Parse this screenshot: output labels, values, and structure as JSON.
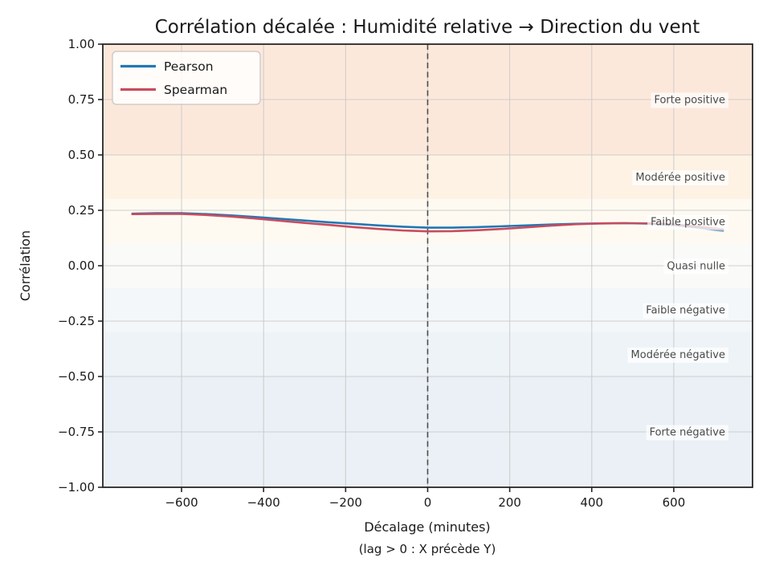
{
  "chart_data": {
    "type": "line",
    "title": "Corrélation décalée : Humidité relative → Direction du vent",
    "xlabel": "Décalage (minutes)",
    "xlabel2": "(lag > 0 : X précède Y)",
    "ylabel": "Corrélation",
    "xlim": [
      -792,
      792
    ],
    "ylim": [
      -1,
      1
    ],
    "grid": true,
    "legend_position": "upper left",
    "x_ticks": [
      -600,
      -400,
      -200,
      0,
      200,
      400,
      600
    ],
    "x_tick_labels": [
      "−600",
      "−400",
      "−200",
      "0",
      "200",
      "400",
      "600"
    ],
    "y_ticks": [
      -1.0,
      -0.75,
      -0.5,
      -0.25,
      0.0,
      0.25,
      0.5,
      0.75,
      1.0
    ],
    "y_tick_labels": [
      "−1.00",
      "−0.75",
      "−0.50",
      "−0.25",
      "0.00",
      "0.25",
      "0.50",
      "0.75",
      "1.00"
    ],
    "vline_x": 0,
    "x": [
      -720,
      -660,
      -600,
      -540,
      -480,
      -420,
      -360,
      -300,
      -240,
      -180,
      -120,
      -60,
      0,
      60,
      120,
      180,
      240,
      300,
      360,
      420,
      480,
      540,
      600,
      660,
      720
    ],
    "series": [
      {
        "name": "Pearson",
        "color": "#2277b4",
        "values": [
          0.235,
          0.237,
          0.237,
          0.233,
          0.227,
          0.22,
          0.212,
          0.204,
          0.196,
          0.189,
          0.182,
          0.176,
          0.172,
          0.172,
          0.174,
          0.178,
          0.182,
          0.186,
          0.189,
          0.191,
          0.192,
          0.19,
          0.184,
          0.172,
          0.157
        ]
      },
      {
        "name": "Spearman",
        "color": "#c94b5e",
        "values": [
          0.233,
          0.234,
          0.234,
          0.229,
          0.222,
          0.213,
          0.203,
          0.193,
          0.184,
          0.174,
          0.166,
          0.159,
          0.155,
          0.156,
          0.16,
          0.166,
          0.173,
          0.181,
          0.187,
          0.191,
          0.192,
          0.191,
          0.187,
          0.177,
          0.165
        ]
      }
    ],
    "zones": [
      {
        "label": "Forte positive",
        "from": 0.5,
        "to": 1.0,
        "color": "#fce8db",
        "label_at": 0.75
      },
      {
        "label": "Modérée positive",
        "from": 0.3,
        "to": 0.5,
        "color": "#fdf2e4",
        "label_at": 0.4
      },
      {
        "label": "Faible positive",
        "from": 0.1,
        "to": 0.3,
        "color": "#fefaf2",
        "label_at": 0.2
      },
      {
        "label": "Quasi nulle",
        "from": -0.1,
        "to": 0.1,
        "color": "#fafbf8",
        "label_at": 0.0
      },
      {
        "label": "Faible négative",
        "from": -0.3,
        "to": -0.1,
        "color": "#f3f7fa",
        "label_at": -0.2
      },
      {
        "label": "Modérée négative",
        "from": -0.5,
        "to": -0.3,
        "color": "#eef3f8",
        "label_at": -0.4
      },
      {
        "label": "Forte négative",
        "from": -1.0,
        "to": -0.5,
        "color": "#eaf0f6",
        "label_at": -0.75
      }
    ],
    "style": {
      "grid_color": "#c9c9c9",
      "spine_color": "#262626",
      "vline_color": "#4d4d4d",
      "zone_label_color": "#4a4a4a",
      "legend_bg": "rgba(255,255,255,0.85)",
      "legend_border": "#c9c4bf"
    }
  }
}
